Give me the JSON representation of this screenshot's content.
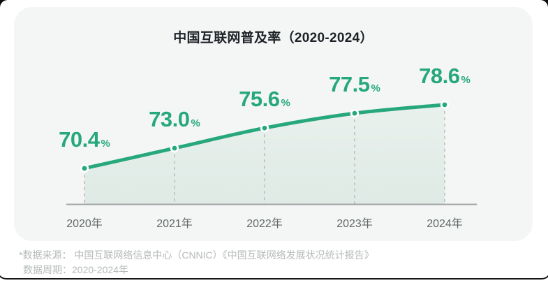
{
  "card": {
    "title": "中国互联网普及率（2020-2024）"
  },
  "chart_data": {
    "type": "area",
    "title": "中国互联网普及率（2020-2024）",
    "categories": [
      "2020年",
      "2021年",
      "2022年",
      "2023年",
      "2024年"
    ],
    "values": [
      70.4,
      73.0,
      75.6,
      77.5,
      78.6
    ],
    "unit": "%",
    "xlabel": "",
    "ylabel": "",
    "ylim": [
      65.8,
      80
    ],
    "grid": false,
    "legend": "none",
    "line_color": "#27a87c",
    "dot_stroke_color": "#ffffff",
    "fill_color_top": "#e9f1ed",
    "fill_color_bottom": "#dfeae5",
    "axis_color": "#a2a6a6",
    "drop_line_color": "#b7bcba",
    "label_color": "#27a87c",
    "tick_color": "#63686a"
  },
  "footer": {
    "source_line": "*数据来源： 中国互联网络信息中心（CNNIC）《中国互联网络发展状况统计报告》",
    "period_line": "数据周期：2020-2024年"
  }
}
